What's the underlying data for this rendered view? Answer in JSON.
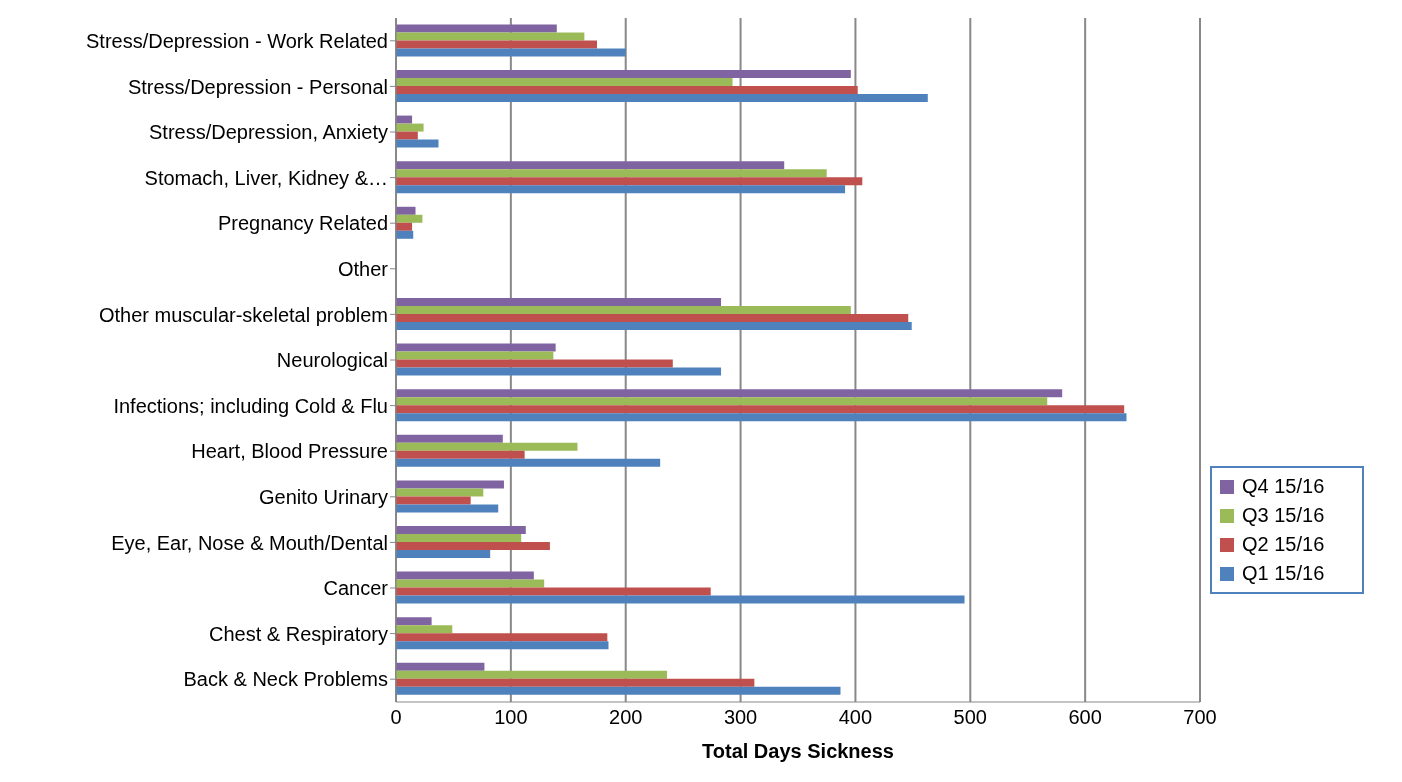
{
  "chart_data": {
    "type": "bar",
    "orientation": "horizontal",
    "xlabel": "Total Days Sickness",
    "categories": [
      "Stress/Depression - Work Related",
      "Stress/Depression - Personal",
      "Stress/Depression, Anxiety",
      "Stomach, Liver, Kidney &…",
      "Pregnancy Related",
      "Other",
      "Other muscular-skeletal problem",
      "Neurological",
      "Infections; including Cold & Flu",
      "Heart, Blood Pressure",
      "Genito Urinary",
      "Eye, Ear, Nose & Mouth/Dental",
      "Cancer",
      "Chest & Respiratory",
      "Back & Neck Problems"
    ],
    "series": [
      {
        "name": "Q4 15/16",
        "color": "#8064a2",
        "values": [
          140,
          396,
          14,
          338,
          17,
          0,
          283,
          139,
          580,
          93,
          94,
          113,
          120,
          31,
          77
        ]
      },
      {
        "name": "Q3 15/16",
        "color": "#9bbb59",
        "values": [
          164,
          293,
          24,
          375,
          23,
          0,
          396,
          137,
          567,
          158,
          76,
          109,
          129,
          49,
          236
        ]
      },
      {
        "name": "Q2 15/16",
        "color": "#c0504d",
        "values": [
          175,
          402,
          19,
          406,
          14,
          0,
          446,
          241,
          634,
          112,
          65,
          134,
          274,
          184,
          312
        ]
      },
      {
        "name": "Q1 15/16",
        "color": "#4f81bd",
        "values": [
          200,
          463,
          37,
          391,
          15,
          0,
          449,
          283,
          636,
          230,
          89,
          82,
          495,
          185,
          387
        ]
      }
    ],
    "xlim": [
      0,
      700
    ],
    "xticks": [
      0,
      100,
      200,
      300,
      400,
      500,
      600,
      700
    ],
    "grid": "x",
    "legend": "right"
  }
}
